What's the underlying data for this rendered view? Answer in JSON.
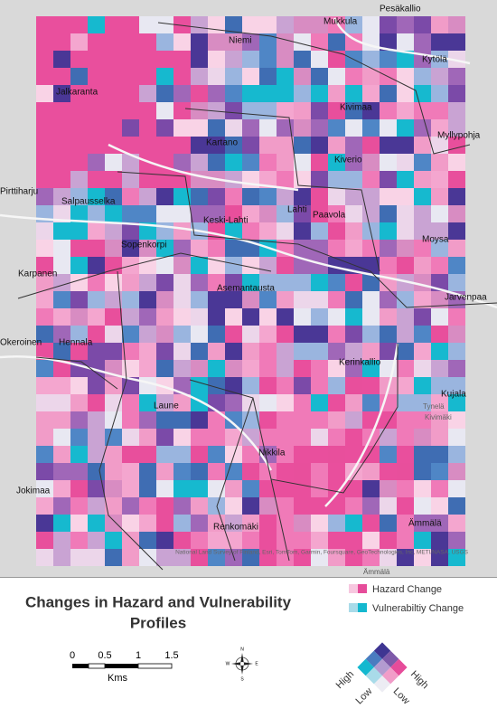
{
  "map": {
    "places": [
      "Pesäkallio",
      "Mukkula",
      "Niemi",
      "Kytölä",
      "Jalkaranta",
      "Kivimaa",
      "Kartano",
      "Myllypohja",
      "Kiverio",
      "Pirttiharju",
      "Salpausselka",
      "Keski-Lahti",
      "Lahti",
      "Paavola",
      "Sopenkorpi",
      "Moysa",
      "Karpanen",
      "Asemantausta",
      "Jarvenpaa",
      "Okeroinen",
      "Hennala",
      "Kerinkallio",
      "Laune",
      "Kujala",
      "Tynelä",
      "Kivimäki",
      "Nikkila",
      "Jokimaa",
      "Ämmälä",
      "Renkomäki",
      "Ämmälä"
    ],
    "attribution": "National Land Survey of Finland, Esri, TomTom, Garmin, Foursquare, GeoTechnologies, Inc, METI/NASA, USGS"
  },
  "legend": {
    "title": "Changes in Hazard and Vulnerability Profiles",
    "title_lines": [
      "Changes in Hazard and Vulnerability",
      "Profiles"
    ],
    "items": [
      "Hazard Change",
      "Vulnerabiltiy Change"
    ],
    "axis_labels": [
      "High",
      "Low",
      "Low",
      "High"
    ]
  },
  "scale_bar": {
    "labels": [
      "0",
      "0.5",
      "1",
      "1.5"
    ],
    "unit": "Kms"
  },
  "compass": {
    "letters": [
      "N",
      "E",
      "S",
      "W"
    ]
  }
}
